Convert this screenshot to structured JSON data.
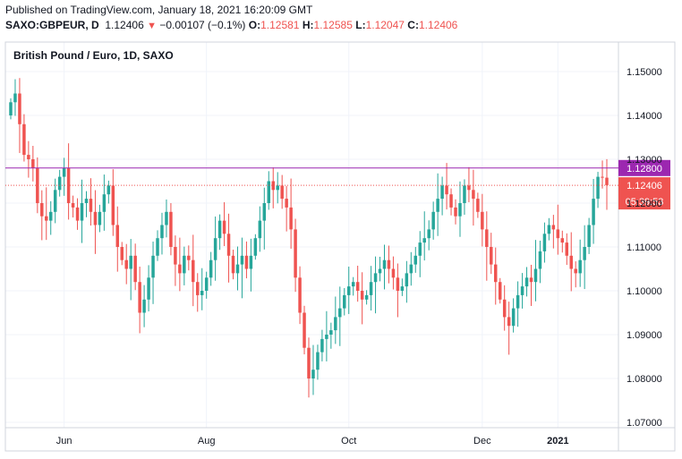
{
  "header": {
    "published": "Published on TradingView.com, January 18, 2021 16:20:09 GMT",
    "symbol": "SAXO:GBPEUR, D",
    "last": "1.12406",
    "change": "−0.00107 (−0.1%)",
    "open_label": "O:",
    "open": "1.12581",
    "high_label": "H:",
    "high": "1.12585",
    "low_label": "L:",
    "low": "1.12047",
    "close_label": "C:",
    "close": "1.12406"
  },
  "colors": {
    "up": "#26a69a",
    "down": "#ef5350",
    "resistance": "#9c27b0",
    "grid": "#f0f3fa",
    "border": "#d1d4dc"
  },
  "chart_data": {
    "type": "candlestick",
    "title": "British Pound / Euro, 1D, SAXO",
    "ylim": [
      1.065,
      1.155
    ],
    "y_ticks": [
      "1.15000",
      "1.14000",
      "1.13000",
      "1.12000",
      "1.11000",
      "1.10000",
      "1.09000",
      "1.08000",
      "1.07000"
    ],
    "y_tick_values": [
      1.15,
      1.14,
      1.13,
      1.12,
      1.11,
      1.1,
      1.09,
      1.08,
      1.07
    ],
    "x_ticks": [
      "Jun",
      "Aug",
      "Oct",
      "Dec",
      "2021"
    ],
    "x_tick_index": [
      12,
      44,
      76,
      106,
      123
    ],
    "resistance_level": 1.128,
    "resistance_label": "1.12800",
    "last_price": 1.12406,
    "last_price_label": "1.12406",
    "countdown": "05:39:53",
    "close_series": [
      1.143,
      1.145,
      1.138,
      1.131,
      1.13,
      1.128,
      1.12,
      1.117,
      1.116,
      1.118,
      1.123,
      1.126,
      1.128,
      1.12,
      1.119,
      1.116,
      1.12,
      1.121,
      1.118,
      1.115,
      1.118,
      1.122,
      1.124,
      1.115,
      1.11,
      1.107,
      1.105,
      1.108,
      1.102,
      1.095,
      1.098,
      1.103,
      1.108,
      1.112,
      1.115,
      1.118,
      1.11,
      1.106,
      1.104,
      1.108,
      1.107,
      1.102,
      1.099,
      1.1,
      1.103,
      1.107,
      1.112,
      1.116,
      1.113,
      1.108,
      1.104,
      1.106,
      1.108,
      1.105,
      1.108,
      1.112,
      1.116,
      1.12,
      1.125,
      1.123,
      1.124,
      1.121,
      1.119,
      1.114,
      1.103,
      1.095,
      1.087,
      1.08,
      1.082,
      1.086,
      1.089,
      1.09,
      1.091,
      1.094,
      1.096,
      1.099,
      1.101,
      1.102,
      1.1,
      1.098,
      1.099,
      1.102,
      1.104,
      1.105,
      1.107,
      1.105,
      1.103,
      1.1,
      1.101,
      1.104,
      1.106,
      1.108,
      1.111,
      1.112,
      1.114,
      1.118,
      1.121,
      1.124,
      1.122,
      1.119,
      1.117,
      1.12,
      1.124,
      1.123,
      1.121,
      1.118,
      1.114,
      1.11,
      1.106,
      1.102,
      1.098,
      1.094,
      1.092,
      1.096,
      1.099,
      1.101,
      1.103,
      1.102,
      1.105,
      1.109,
      1.113,
      1.115,
      1.114,
      1.112,
      1.111,
      1.108,
      1.105,
      1.104,
      1.107,
      1.11,
      1.115,
      1.121,
      1.126,
      1.1258,
      1.1241
    ]
  }
}
